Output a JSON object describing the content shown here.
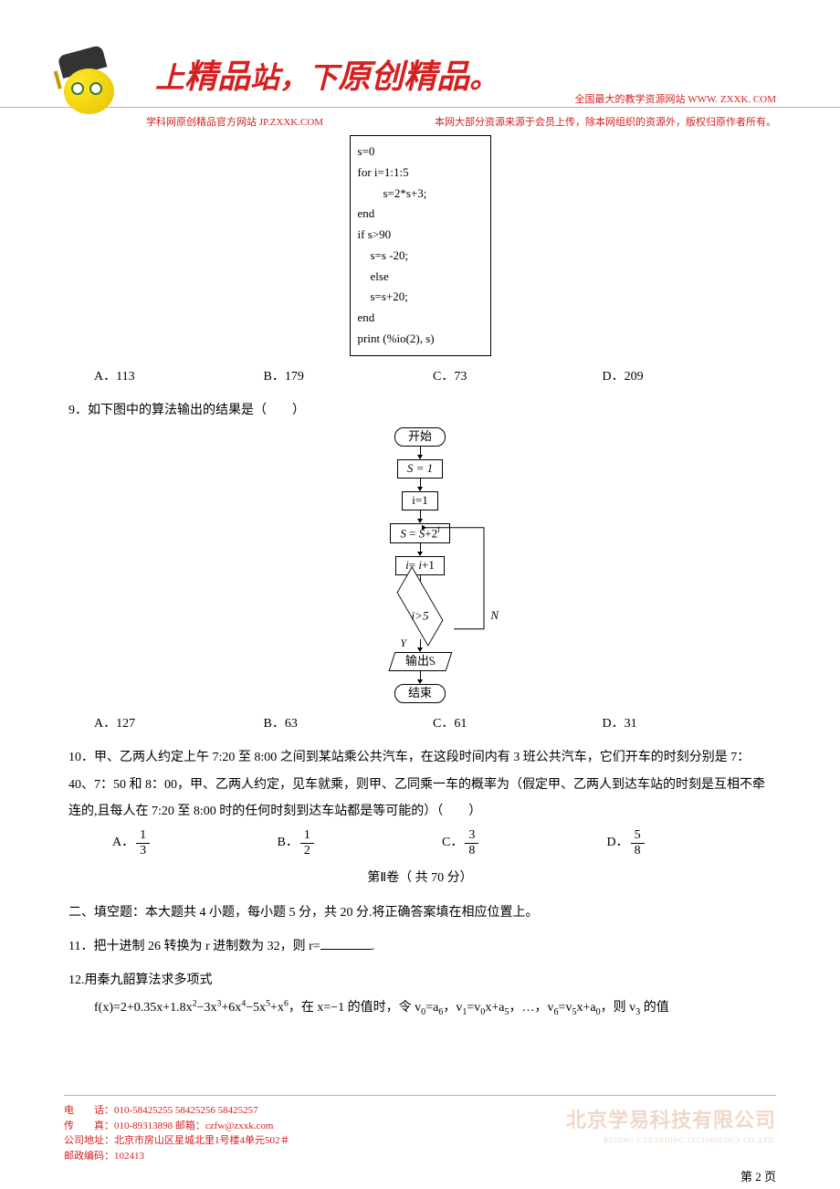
{
  "header": {
    "title_prefix": "上",
    "title_word1": "精品",
    "title_mid1": "站，",
    "title_mid2": "下",
    "title_word2": "原创精品",
    "title_suffix": "。",
    "top_right": "全国最大的教学资源网站 WWW. ZXXK. COM",
    "sub_left": "学科网原创精品官方网站 JP.ZXXK.COM",
    "sub_right": "本网大部分资源来源于会员上传，除本网组织的资源外，版权归原作者所有。"
  },
  "code_block": {
    "l1": "s=0",
    "l2": "for i=1:1:5",
    "l3": "s=2*s+3;",
    "l4": "end",
    "l5": "if   s>90",
    "l6": "s=s -20;",
    "l7": "else",
    "l8": "s=s+20;",
    "l9": "end",
    "l10": "print (%io(2), s)"
  },
  "q8_options": {
    "a": "A．113",
    "b": "B．179",
    "c": "C．73",
    "d": "D．209"
  },
  "q9": {
    "text": "9．如下图中的算法输出的结果是（　　）",
    "flowchart": {
      "start": "开始",
      "s1": "S = 1",
      "s2": "i=1",
      "s3_html": "<span class='ital'>S</span> = <span class='ital'>S</span>+2<sup><span class='ital'>i</span></sup>",
      "s4_html": "<span class='ital'>i</span>= <span class='ital'>i</span>+1",
      "cond_html": "<span class='ital'>i</span>>5",
      "n_label": "N",
      "y_label": "Y",
      "output_html": "输出<span class='ital'>S</span>",
      "end": "结束"
    },
    "options": {
      "a": "A．127",
      "b": "B．63",
      "c": "C．61",
      "d": "D．31"
    }
  },
  "q10": {
    "text": "10．甲、乙两人约定上午 7:20 至 8:00 之间到某站乘公共汽车，在这段时间内有 3 班公共汽车，它们开车的时刻分别是 7：40、7：50 和 8：00，甲、乙两人约定，见车就乘，则甲、乙同乘一车的概率为（假定甲、乙两人到达车站的时刻是互相不牵连的,且每人在 7:20 至 8:00 时的任何时刻到达车站都是等可能的）（　　）",
    "options": {
      "a_label": "A．",
      "a_num": "1",
      "a_den": "3",
      "b_label": "B．",
      "b_num": "1",
      "b_den": "2",
      "c_label": "C．",
      "c_num": "3",
      "c_den": "8",
      "d_label": "D．",
      "d_num": "5",
      "d_den": "8"
    }
  },
  "section2": {
    "title": "第Ⅱ卷（  共 70 分）",
    "heading": "二、填空题：本大题共 4 小题，每小题 5 分，共 20 分.将正确答案填在相应位置上。"
  },
  "q11": {
    "text_prefix": "11．把十进制 26 转换为 r 进制数为 32，则 r=",
    "text_suffix": "."
  },
  "q12": {
    "l1": "12.用秦九韶算法求多项式",
    "l2_html": "f(x)=2+0.35x+1.8x<sup>2</sup>−3x<sup>3</sup>+6x<sup>4</sup>−5x<sup>5</sup>+x<sup>6</sup>，在 x=−1 的值时，令 v<sub>0</sub>=a<sub>6</sub>，v<sub>1</sub>=v<sub>0</sub>x+a<sub>5</sub>，…，v<sub>6</sub>=v<sub>5</sub>x+a<sub>0</sub>，则 v<sub>3</sub> 的值"
  },
  "footer": {
    "l1": "电　　话：010-58425255 58425256 58425257",
    "l2": "传　　真：010-89313898 邮箱：czfw@zxxk.com",
    "l3": "公司地址：北京市房山区星城北里1号楼4单元502＃",
    "l4": "邮政编码：102413",
    "company": "北京学易科技有限公司",
    "company_en": "BEIJING E LEARNING TECHNOLOGY CO.,LTD.",
    "page": "第 2 页"
  }
}
